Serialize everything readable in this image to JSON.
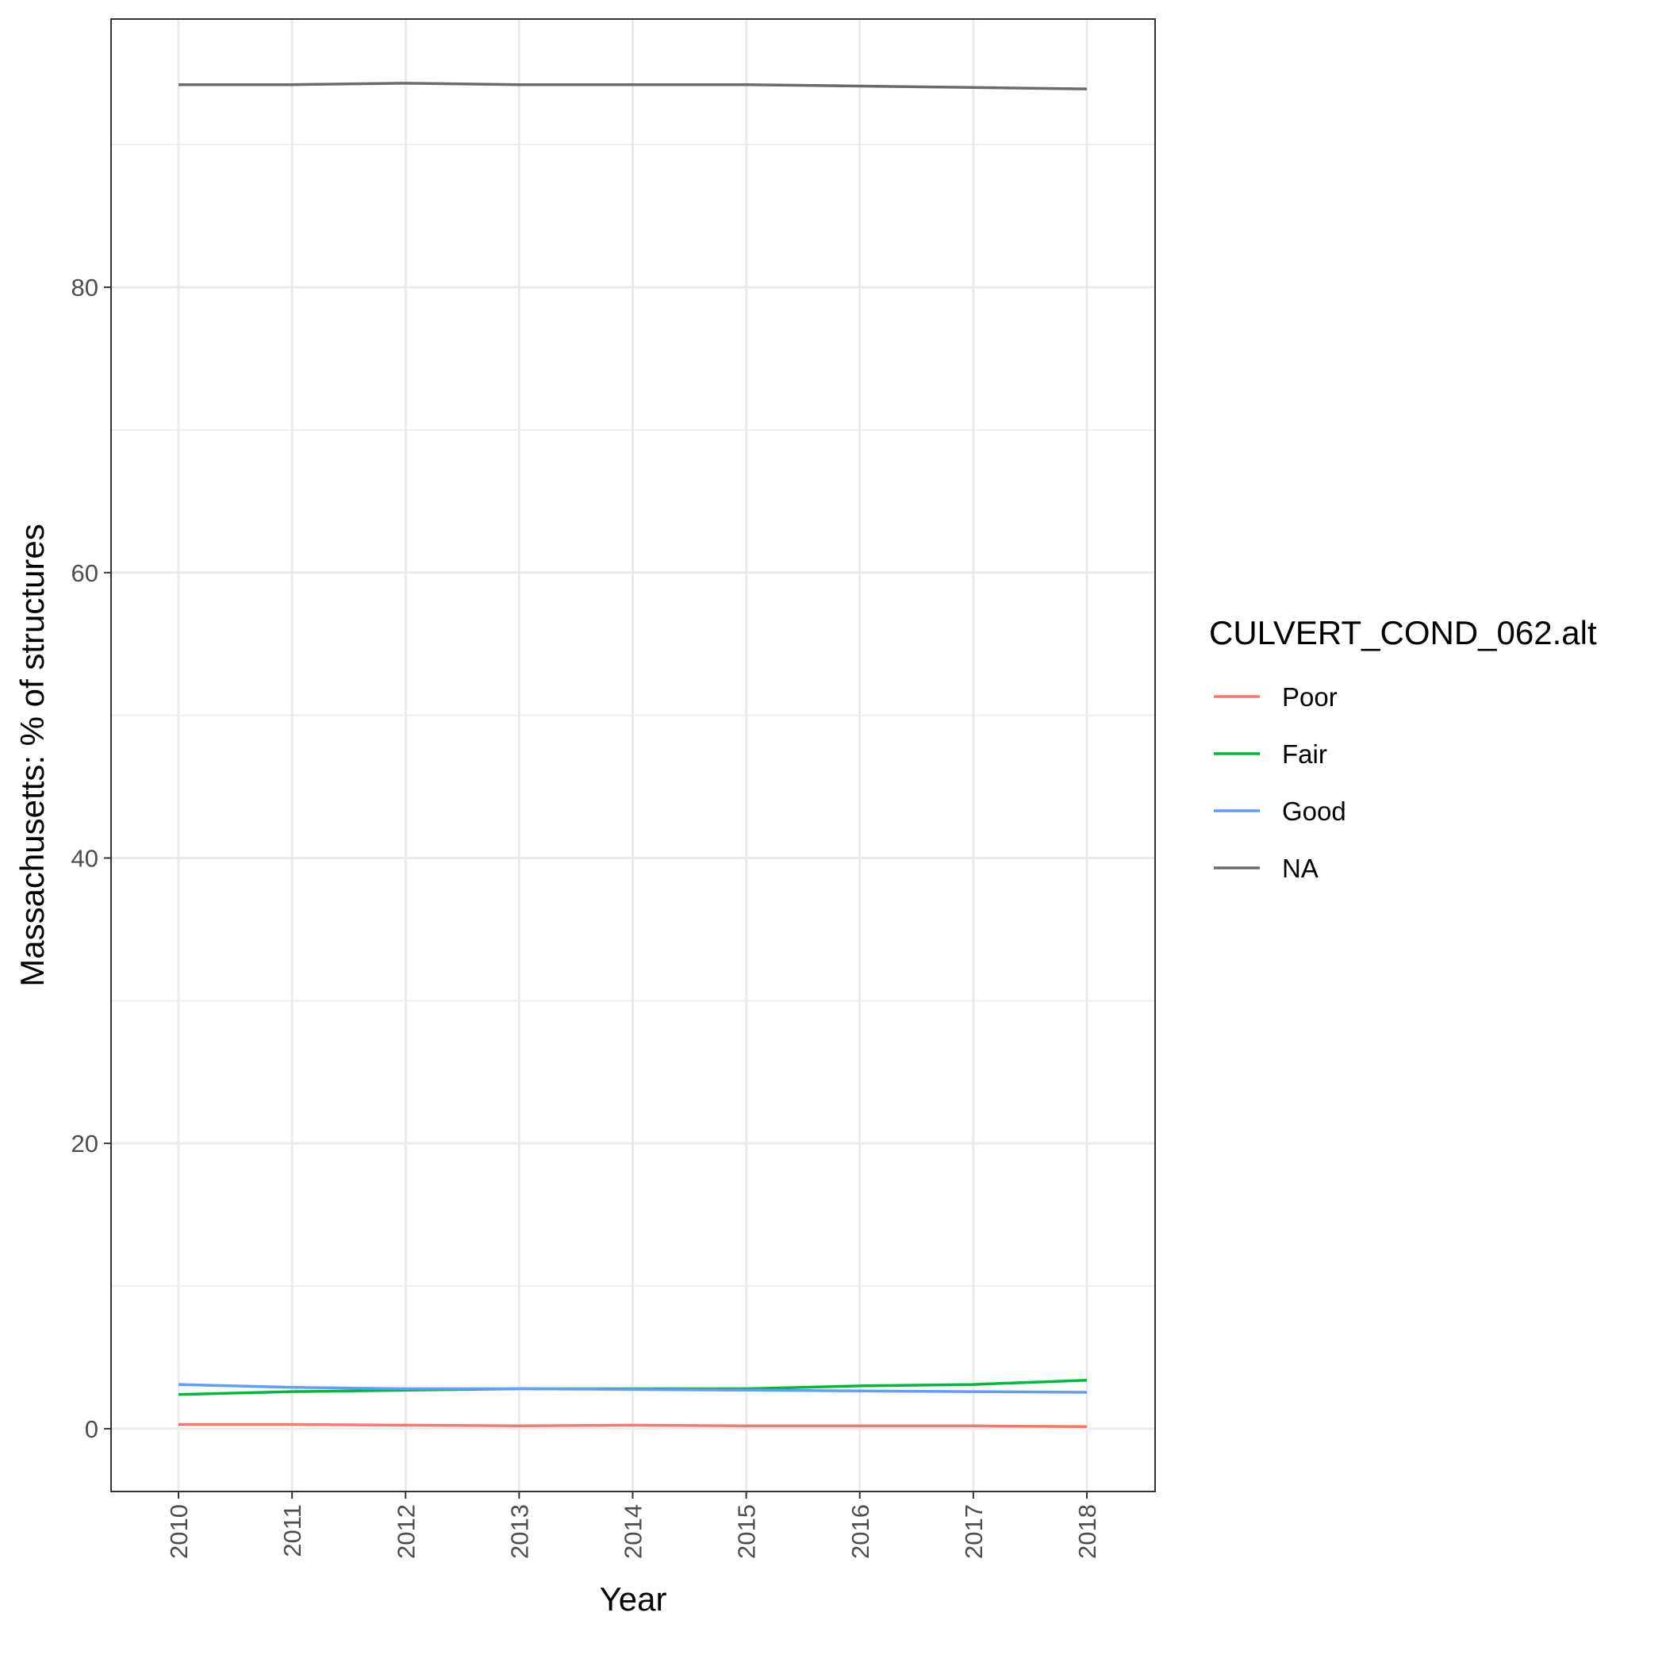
{
  "chart_data": {
    "type": "line",
    "title": "",
    "xlabel": "Year",
    "ylabel": "Massachusetts: % of structures",
    "x": [
      2010,
      2011,
      2012,
      2013,
      2014,
      2015,
      2016,
      2017,
      2018
    ],
    "x_tick_labels": [
      "2010",
      "2011",
      "2012",
      "2013",
      "2014",
      "2015",
      "2016",
      "2017",
      "2018"
    ],
    "y_ticks": [
      0,
      20,
      40,
      60,
      80
    ],
    "y_tick_labels": [
      "0",
      "20",
      "40",
      "60",
      "80"
    ],
    "ylim": [
      -4.4,
      98.8
    ],
    "grid": true,
    "legend": {
      "title": "CULVERT_COND_062.alt",
      "position": "right"
    },
    "series": [
      {
        "name": "Poor",
        "color": "#F8766D",
        "values": [
          0.3,
          0.3,
          0.25,
          0.2,
          0.25,
          0.2,
          0.2,
          0.2,
          0.15
        ]
      },
      {
        "name": "Fair",
        "color": "#00BA38",
        "values": [
          2.4,
          2.6,
          2.7,
          2.8,
          2.8,
          2.8,
          3.0,
          3.1,
          3.4
        ]
      },
      {
        "name": "Good",
        "color": "#619CFF",
        "values": [
          3.1,
          2.9,
          2.8,
          2.8,
          2.75,
          2.7,
          2.65,
          2.6,
          2.55
        ]
      },
      {
        "name": "NA",
        "color": "#6B6B6B",
        "values": [
          94.2,
          94.2,
          94.3,
          94.2,
          94.2,
          94.2,
          94.1,
          94.0,
          93.9
        ]
      }
    ]
  }
}
